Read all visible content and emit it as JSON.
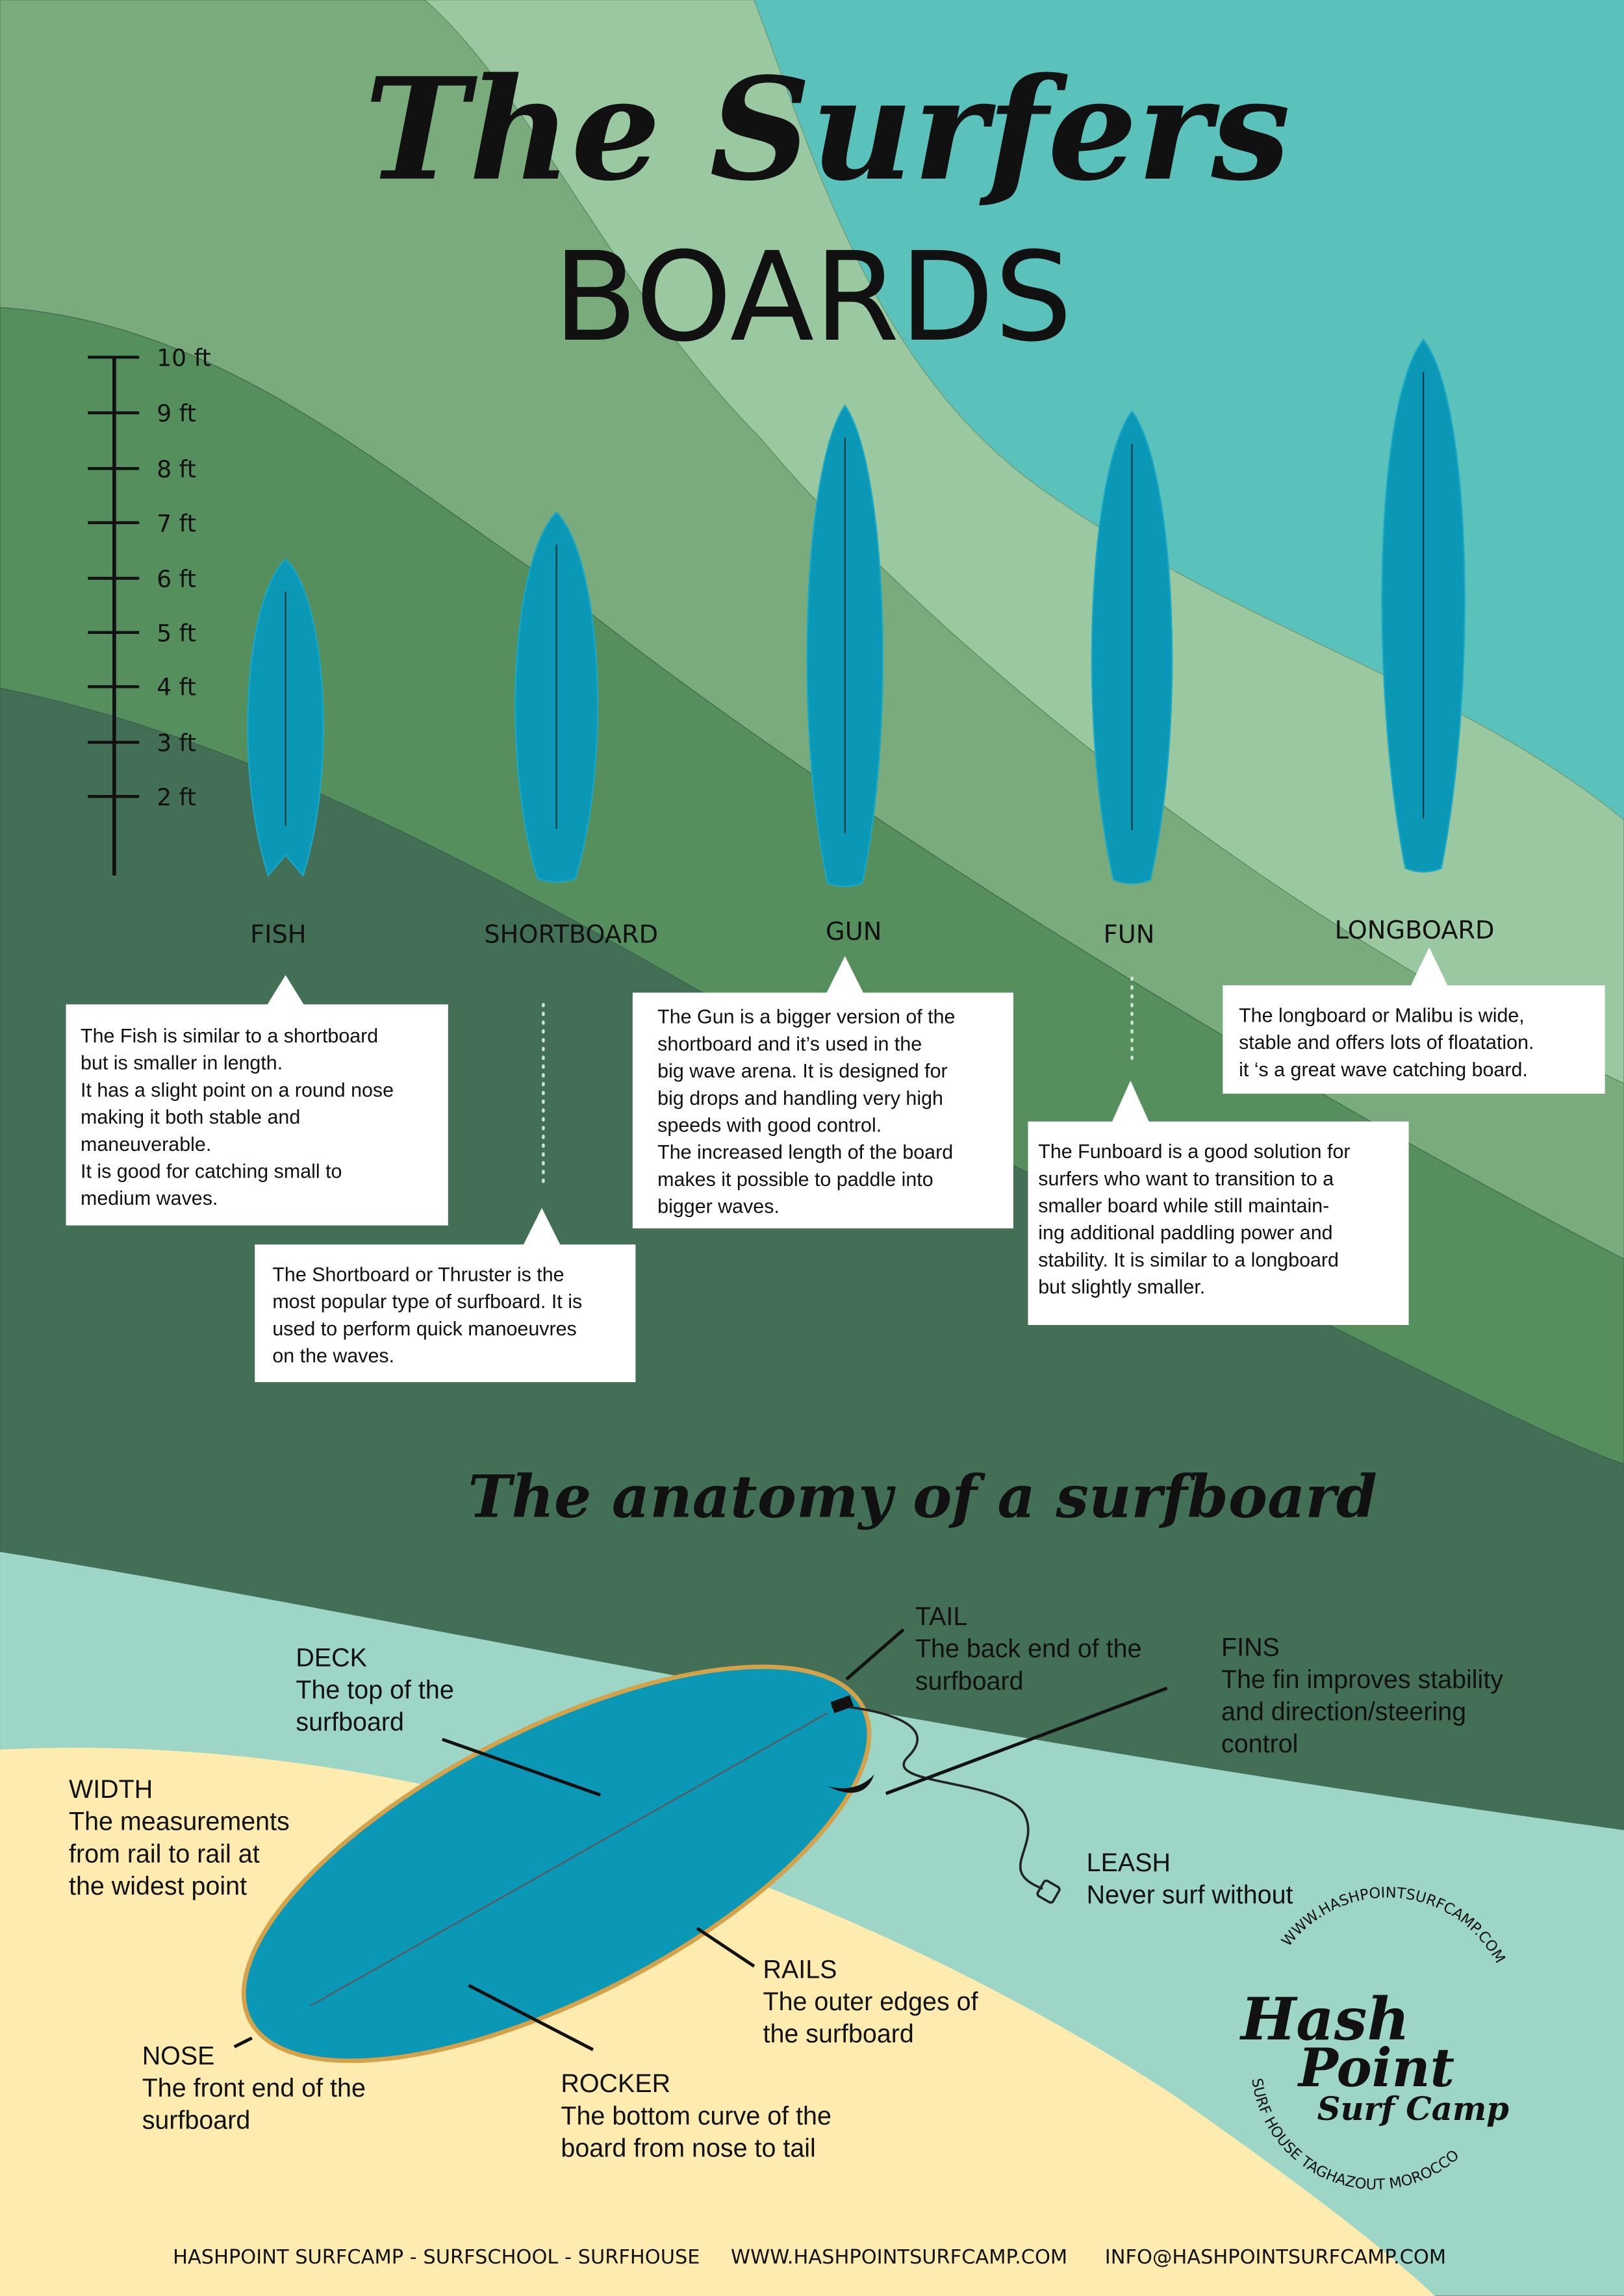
{
  "header": {
    "title": "The Surfers",
    "subtitle": "BOARDS"
  },
  "scale": [
    "10 ft",
    "9 ft",
    "8 ft",
    "7 ft",
    "6 ft",
    "5 ft",
    "4 ft",
    "3 ft",
    "2 ft"
  ],
  "boards": [
    {
      "name": "FISH",
      "description": [
        "The Fish is similar to a shortboard",
        "but is smaller in length.",
        "It has a slight point on a round nose",
        "making it both stable and",
        "maneuverable.",
        "It is good for catching small to",
        "medium waves."
      ]
    },
    {
      "name": "SHORTBOARD",
      "description": [
        "The Shortboard or Thruster is the",
        "most popular type of surfboard. It is",
        "used to perform quick manoeuvres",
        "on the waves."
      ]
    },
    {
      "name": "GUN",
      "description": [
        "The Gun is a bigger version of the",
        "shortboard and it’s used in the",
        "big wave arena. It is designed for",
        "big drops and handling very high",
        "speeds with good control.",
        "The increased length of the board",
        "makes it possible to paddle into",
        "bigger waves."
      ]
    },
    {
      "name": "FUN",
      "description": [
        "The Funboard is a good solution for",
        "surfers who want to transition to a",
        "smaller board while still maintain-",
        "ing additional paddling power and",
        "stability. It is similar to a longboard",
        "but slightly smaller."
      ]
    },
    {
      "name": "LONGBOARD",
      "description": [
        "The longboard or Malibu is wide,",
        "stable and offers lots of floatation.",
        "it ‘s a great wave catching board."
      ]
    }
  ],
  "anatomy": {
    "title": "The anatomy of a surfboard",
    "parts": [
      {
        "label": "TAIL",
        "text": [
          "The back end of the",
          "surfboard"
        ]
      },
      {
        "label": "FINS",
        "text": [
          "The fin improves stability",
          "and direction/steering",
          "control"
        ]
      },
      {
        "label": "DECK",
        "text": [
          "The top of the",
          "surfboard"
        ]
      },
      {
        "label": "WIDTH",
        "text": [
          "The measurements",
          "from rail to rail at",
          "the widest point"
        ]
      },
      {
        "label": "LEASH",
        "text": [
          "Never surf without"
        ]
      },
      {
        "label": "RAILS",
        "text": [
          "The outer edges of",
          "the surfboard"
        ]
      },
      {
        "label": "NOSE",
        "text": [
          "The front end of the",
          "surfboard"
        ]
      },
      {
        "label": "ROCKER",
        "text": [
          "The bottom curve of the",
          "board from nose to tail"
        ]
      }
    ]
  },
  "logo": {
    "url": "WWW.HASHPOINTSURFCAMP.COM",
    "name_line1": "Hash",
    "name_line2": "Point",
    "tagline": "Surf Camp",
    "location": "SURF HOUSE TAGHAZOUT MOROCCO"
  },
  "footer": [
    "HASHPOINT SURFCAMP - SURFSCHOOL - SURFHOUSE",
    "WWW.HASHPOINTSURFCAMP.COM",
    "INFO@HASHPOINTSURFCAMP.COM"
  ]
}
